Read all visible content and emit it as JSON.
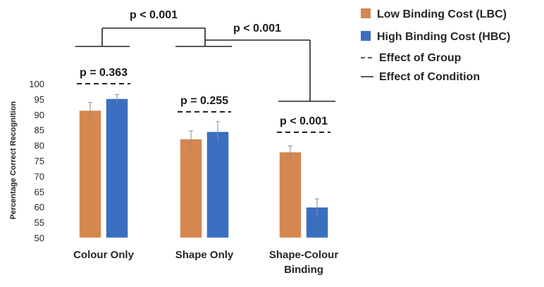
{
  "chart_data": {
    "type": "bar",
    "ylabel": "Percentage Correct Recognition",
    "ylim": [
      50,
      100
    ],
    "ytick_step": 5,
    "categories": [
      "Colour Only",
      "Shape Only",
      "Shape-Colour Binding"
    ],
    "category_lines": [
      [
        "Colour Only"
      ],
      [
        "Shape Only"
      ],
      [
        "Shape-Colour",
        "Binding"
      ]
    ],
    "series": [
      {
        "name": "Low Binding Cost (LBC)",
        "values": [
          91.3,
          82.0,
          77.8
        ],
        "errors": [
          2.6,
          2.7,
          2.0
        ],
        "color": "#D4874E"
      },
      {
        "name": "High Binding Cost (HBC)",
        "values": [
          95.1,
          84.4,
          59.9
        ],
        "errors": [
          1.4,
          3.3,
          2.7
        ],
        "color": "#3A6FBF"
      }
    ],
    "annotations": {
      "group_tests": [
        "p = 0.363",
        "p = 0.255",
        "p < 0.001"
      ],
      "condition_tests": [
        "p < 0.001",
        "p < 0.001"
      ]
    },
    "legend": {
      "placement": "top-right",
      "line_entries": [
        "Effect of Group",
        "Effect of Condition"
      ]
    },
    "grid": false
  }
}
